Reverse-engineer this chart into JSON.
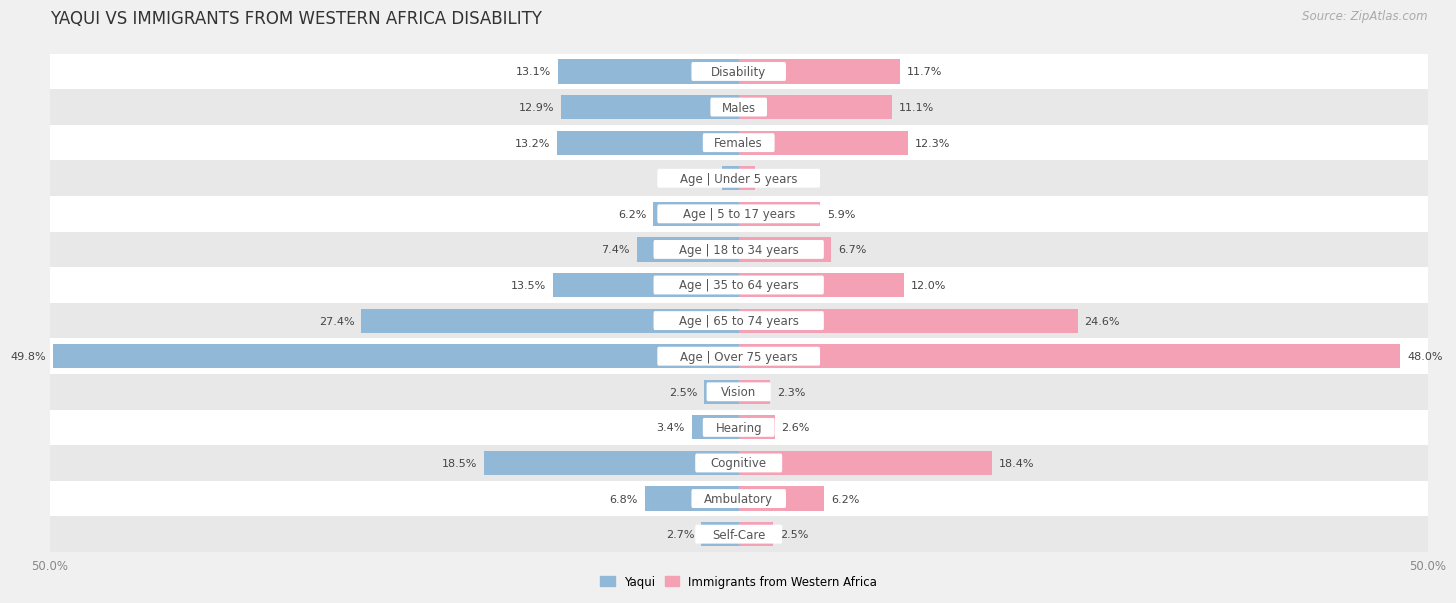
{
  "title": "YAQUI VS IMMIGRANTS FROM WESTERN AFRICA DISABILITY",
  "source": "Source: ZipAtlas.com",
  "categories": [
    "Disability",
    "Males",
    "Females",
    "Age | Under 5 years",
    "Age | 5 to 17 years",
    "Age | 18 to 34 years",
    "Age | 35 to 64 years",
    "Age | 65 to 74 years",
    "Age | Over 75 years",
    "Vision",
    "Hearing",
    "Cognitive",
    "Ambulatory",
    "Self-Care"
  ],
  "yaqui_values": [
    13.1,
    12.9,
    13.2,
    1.2,
    6.2,
    7.4,
    13.5,
    27.4,
    49.8,
    2.5,
    3.4,
    18.5,
    6.8,
    2.7
  ],
  "immigrant_values": [
    11.7,
    11.1,
    12.3,
    1.2,
    5.9,
    6.7,
    12.0,
    24.6,
    48.0,
    2.3,
    2.6,
    18.4,
    6.2,
    2.5
  ],
  "yaqui_color": "#92b8d8",
  "immigrant_color": "#f4a0b5",
  "yaqui_label": "Yaqui",
  "immigrant_label": "Immigrants from Western Africa",
  "axis_limit": 50.0,
  "bg_color": "#f0f0f0",
  "row_color_even": "#ffffff",
  "row_color_odd": "#e8e8e8",
  "title_fontsize": 12,
  "label_fontsize": 8.5,
  "value_fontsize": 8,
  "source_fontsize": 8.5
}
